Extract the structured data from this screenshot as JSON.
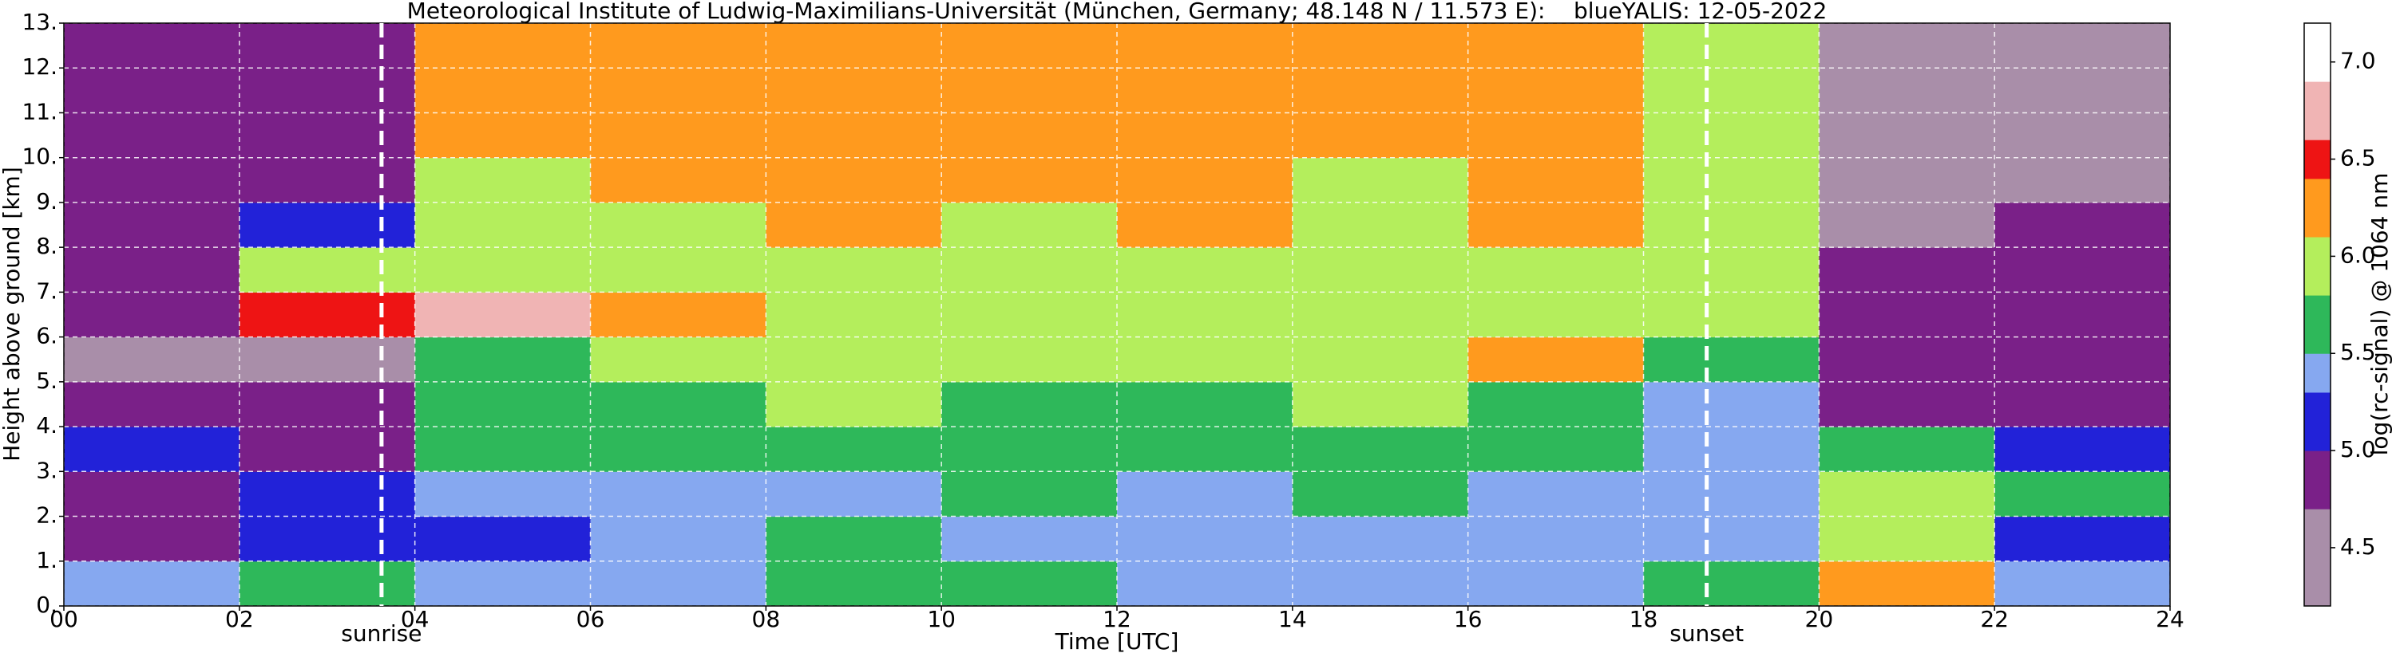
{
  "chart_data": {
    "type": "heatmap",
    "title": "Meteorological Institute of Ludwig-Maximilians-Universität (München, Germany; 48.148 N / 11.573 E):    blueYALIS: 12-05-2022",
    "x_label": "Time [UTC]",
    "y_label": "Height above ground [km]",
    "colorbar_label": "log(rc-signal) @ 1064 nm",
    "x": [
      0,
      2,
      4,
      6,
      8,
      10,
      12,
      14,
      16,
      18,
      20,
      22,
      24
    ],
    "y": [
      0,
      1,
      2,
      3,
      4,
      5,
      6,
      7,
      8,
      9,
      10,
      11,
      12,
      13
    ],
    "values": [
      [
        5.3,
        5.6,
        5.4,
        5.3,
        5.6,
        5.5,
        5.4,
        5.4,
        5.4,
        5.6,
        6.2,
        5.3
      ],
      [
        4.8,
        5.1,
        5.2,
        5.3,
        5.5,
        5.4,
        5.3,
        5.3,
        5.3,
        5.4,
        6.0,
        5.2
      ],
      [
        4.9,
        5.0,
        5.3,
        5.4,
        5.4,
        5.5,
        5.4,
        5.5,
        5.4,
        5.3,
        5.8,
        5.5
      ],
      [
        5.0,
        4.9,
        5.5,
        5.6,
        5.7,
        5.6,
        5.6,
        5.7,
        5.6,
        5.3,
        5.6,
        5.0
      ],
      [
        4.7,
        4.7,
        5.6,
        5.7,
        5.8,
        5.7,
        5.7,
        5.8,
        5.7,
        5.4,
        4.9,
        4.8
      ],
      [
        4.6,
        4.6,
        5.7,
        5.8,
        5.9,
        5.8,
        5.8,
        5.8,
        6.2,
        5.7,
        4.7,
        4.7
      ],
      [
        4.7,
        6.5,
        6.6,
        6.3,
        5.9,
        5.9,
        5.9,
        5.9,
        6.0,
        5.8,
        4.7,
        4.7
      ],
      [
        4.7,
        5.8,
        6.0,
        5.9,
        6.0,
        6.0,
        6.0,
        6.0,
        6.0,
        5.9,
        4.7,
        4.7
      ],
      [
        4.7,
        5.0,
        6.0,
        6.0,
        6.1,
        6.0,
        6.1,
        6.0,
        6.1,
        5.9,
        4.6,
        4.7
      ],
      [
        4.7,
        4.7,
        6.0,
        6.1,
        6.1,
        6.1,
        6.1,
        6.0,
        6.2,
        5.9,
        4.6,
        4.6
      ],
      [
        4.7,
        4.7,
        6.1,
        6.1,
        6.2,
        6.1,
        6.1,
        6.1,
        6.1,
        5.9,
        4.6,
        4.6
      ],
      [
        4.7,
        4.7,
        6.1,
        6.2,
        6.2,
        6.2,
        6.2,
        6.1,
        6.1,
        5.9,
        4.6,
        4.6
      ],
      [
        4.7,
        4.7,
        6.1,
        6.2,
        6.3,
        6.2,
        6.2,
        6.1,
        6.1,
        5.9,
        4.6,
        4.6
      ]
    ],
    "xlim": [
      0,
      24
    ],
    "ylim": [
      0,
      13
    ],
    "clim": [
      4.2,
      7.2
    ],
    "xticks": [
      {
        "value": 0,
        "label": "00"
      },
      {
        "value": 2,
        "label": "02"
      },
      {
        "value": 4,
        "label": "04"
      },
      {
        "value": 6,
        "label": "06"
      },
      {
        "value": 8,
        "label": "08"
      },
      {
        "value": 10,
        "label": "10"
      },
      {
        "value": 12,
        "label": "12"
      },
      {
        "value": 14,
        "label": "14"
      },
      {
        "value": 16,
        "label": "16"
      },
      {
        "value": 18,
        "label": "18"
      },
      {
        "value": 20,
        "label": "20"
      },
      {
        "value": 22,
        "label": "22"
      },
      {
        "value": 24,
        "label": "24"
      }
    ],
    "yticks": [
      {
        "value": 0,
        "label": "0."
      },
      {
        "value": 1,
        "label": "1."
      },
      {
        "value": 2,
        "label": "2."
      },
      {
        "value": 3,
        "label": "3."
      },
      {
        "value": 4,
        "label": "4."
      },
      {
        "value": 5,
        "label": "5."
      },
      {
        "value": 6,
        "label": "6."
      },
      {
        "value": 7,
        "label": "7."
      },
      {
        "value": 8,
        "label": "8."
      },
      {
        "value": 9,
        "label": "9."
      },
      {
        "value": 10,
        "label": "10."
      },
      {
        "value": 11,
        "label": "11."
      },
      {
        "value": 12,
        "label": "12."
      },
      {
        "value": 13,
        "label": "13."
      }
    ],
    "cticks": [
      4.5,
      {
        "value": 5,
        "label": "5.0"
      },
      5.5,
      {
        "value": 6,
        "label": "6.0"
      },
      6.5,
      {
        "value": 7,
        "label": "7.0"
      }
    ],
    "colorscale": [
      [
        4.2,
        "#a98ea9"
      ],
      [
        4.7,
        "#7a2088"
      ],
      [
        5.0,
        "#2222d8"
      ],
      [
        5.3,
        "#86a8f0"
      ],
      [
        5.5,
        "#2eb85a"
      ],
      [
        5.8,
        "#b4ee5c"
      ],
      [
        6.1,
        "#ff9a1e"
      ],
      [
        6.4,
        "#ee1414"
      ],
      [
        6.6,
        "#f0b4b4"
      ],
      [
        6.9,
        "#ffffff"
      ]
    ],
    "grid": true,
    "markers": [
      {
        "x": 3.62,
        "label": "sunrise"
      },
      {
        "x": 18.72,
        "label": "sunset"
      }
    ]
  }
}
